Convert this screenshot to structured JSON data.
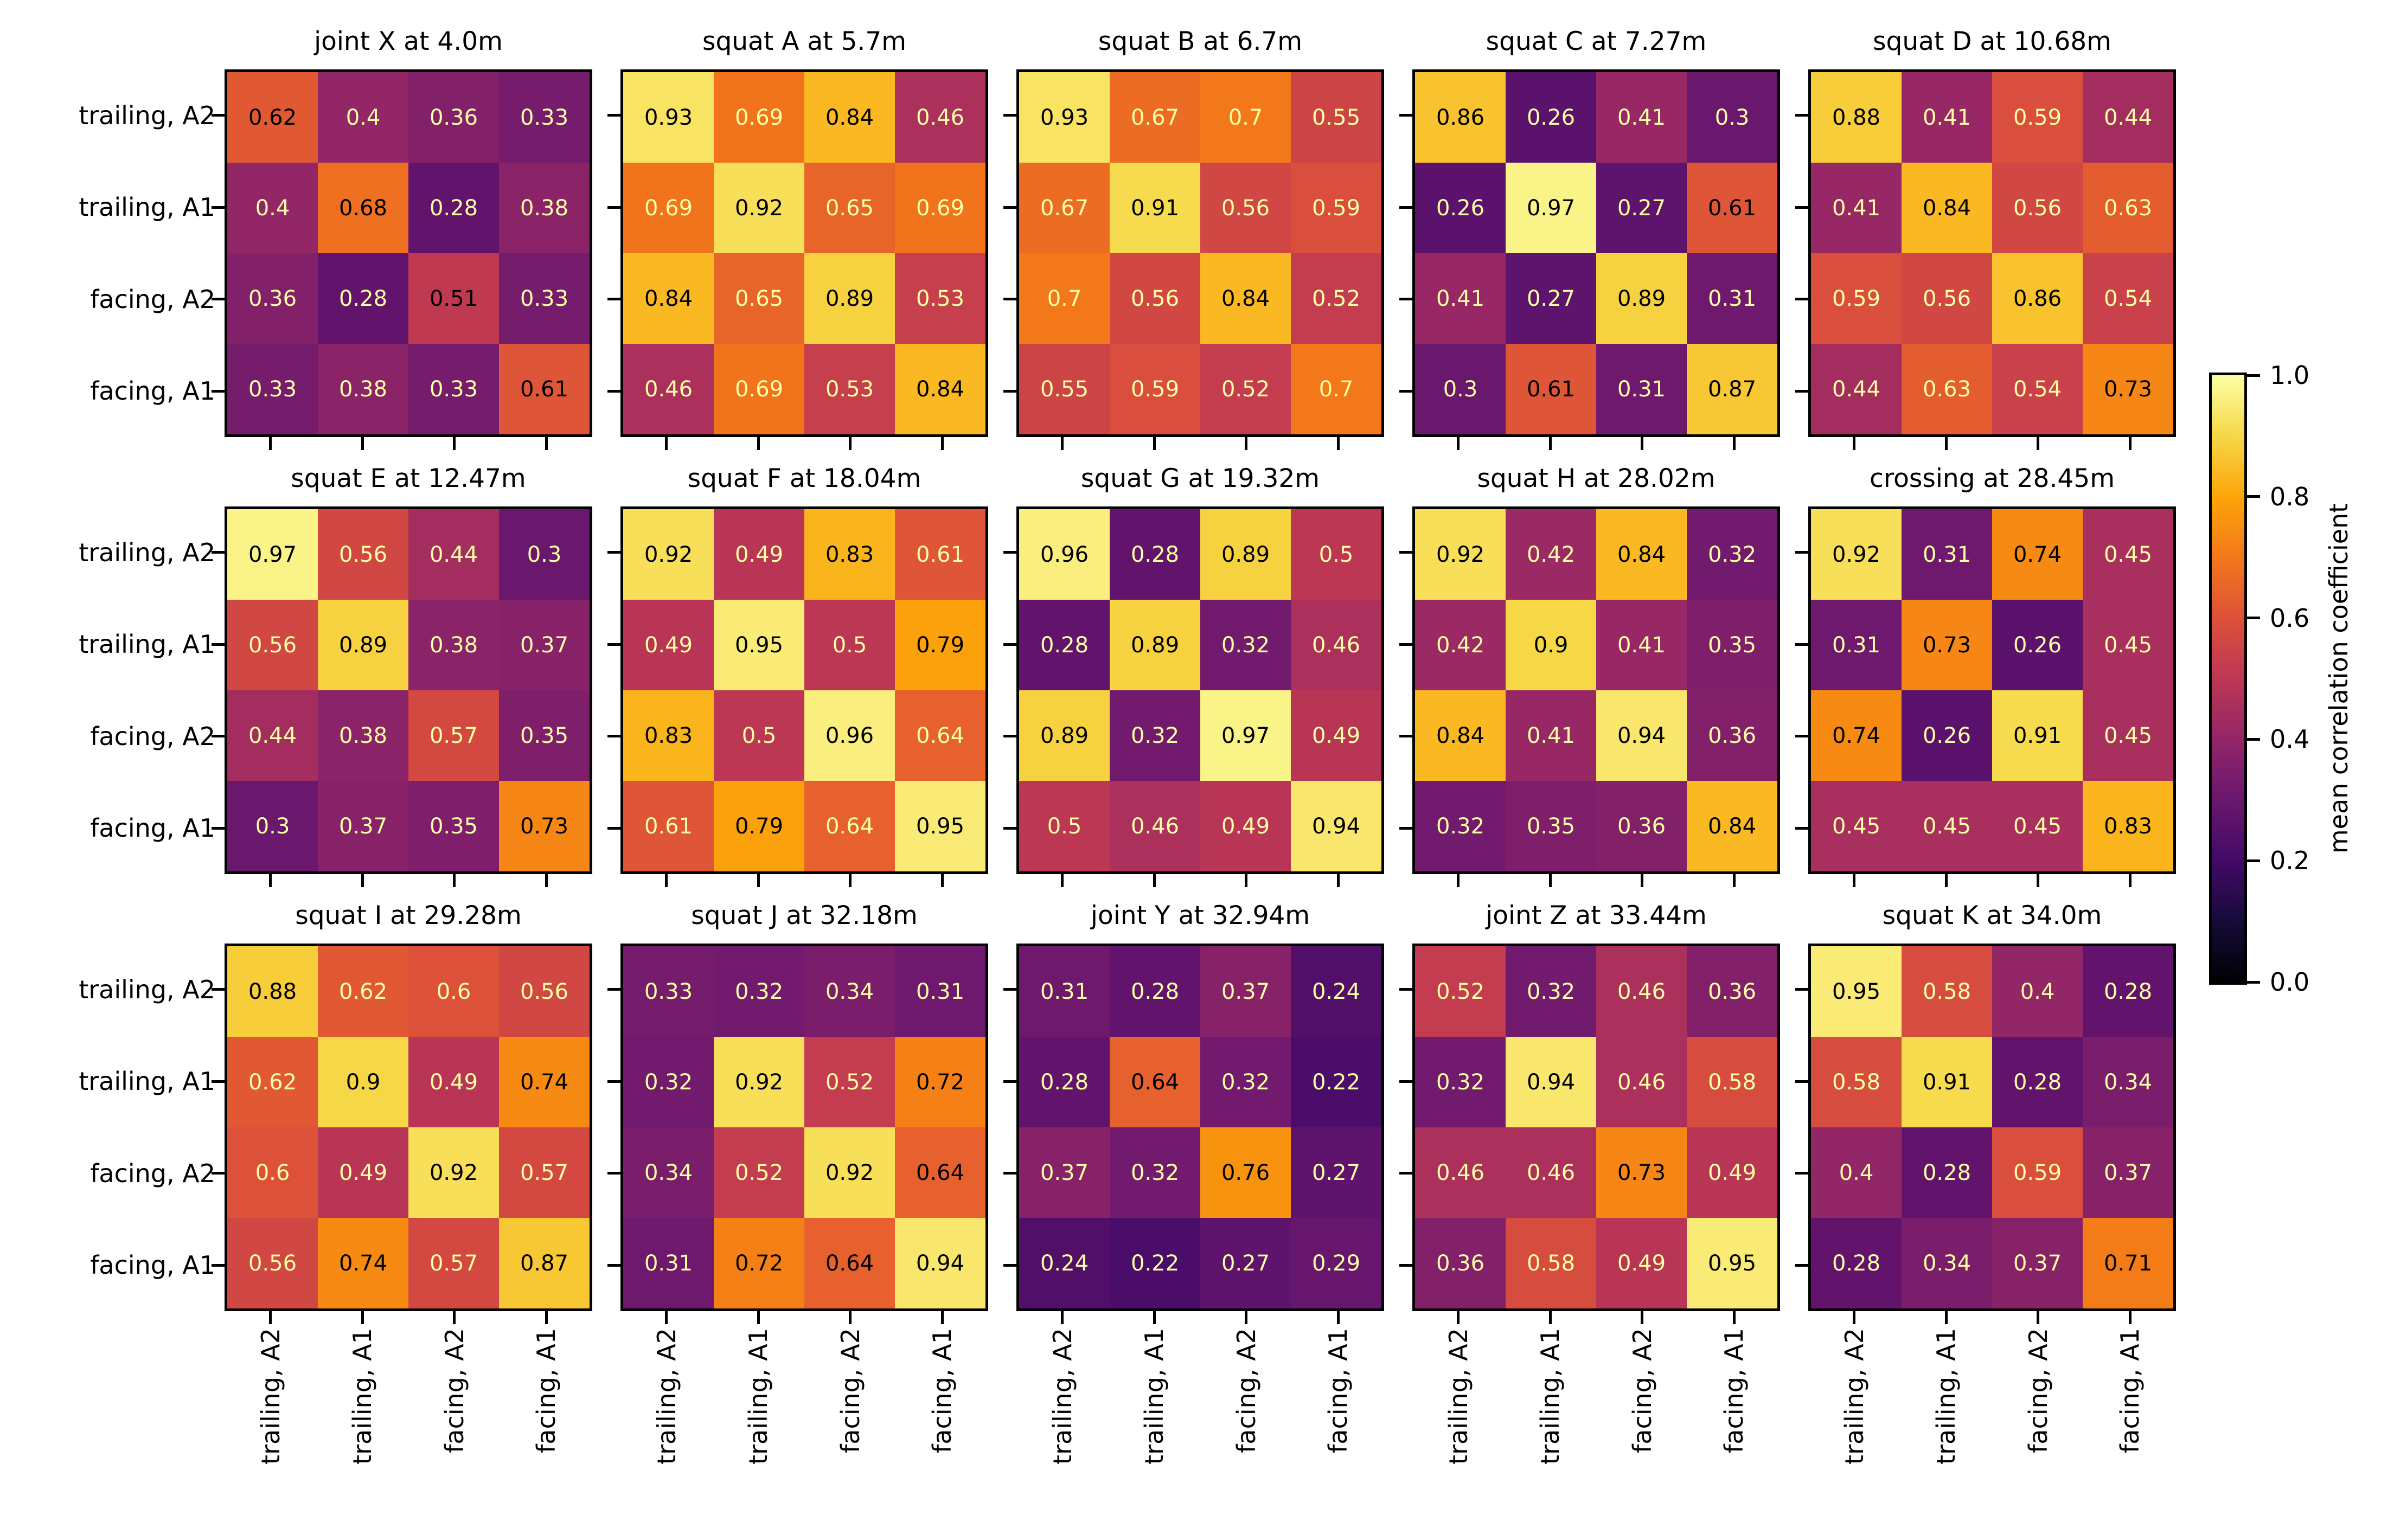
{
  "figure": {
    "colorbar_label": "mean correlation coefficient"
  },
  "chart_data": {
    "type": "heatmap",
    "grid": {
      "rows": 3,
      "cols": 5
    },
    "categories": [
      "trailing, A2",
      "trailing, A1",
      "facing, A2",
      "facing, A1"
    ],
    "row_labels": [
      "trailing, A2",
      "trailing, A1",
      "facing, A2",
      "facing, A1"
    ],
    "colormap": "inferno",
    "vmin": 0.0,
    "vmax": 1.0,
    "colormap_rgb": [
      [
        0,
        0,
        4
      ],
      [
        22,
        11,
        57
      ],
      [
        66,
        10,
        104
      ],
      [
        106,
        23,
        110
      ],
      [
        147,
        38,
        103
      ],
      [
        188,
        55,
        84
      ],
      [
        221,
        81,
        58
      ],
      [
        243,
        120,
        25
      ],
      [
        252,
        165,
        10
      ],
      [
        246,
        215,
        70
      ],
      [
        252,
        255,
        164
      ]
    ],
    "annotation_colors": {
      "light": "#fcffa4",
      "dark": "#000000"
    },
    "colorbar": {
      "label": "mean correlation coefficient",
      "ticks": [
        "0.0",
        "0.2",
        "0.4",
        "0.6",
        "0.8",
        "1.0"
      ],
      "legend_position": "right"
    },
    "panels": [
      {
        "title": "joint X at 4.0m",
        "text_threshold": 0.48,
        "values": [
          [
            0.62,
            0.4,
            0.36,
            0.33
          ],
          [
            0.4,
            0.68,
            0.28,
            0.38
          ],
          [
            0.36,
            0.28,
            0.51,
            0.33
          ],
          [
            0.33,
            0.38,
            0.33,
            0.61
          ]
        ]
      },
      {
        "title": "squat A at 5.7m",
        "text_threshold": 0.695,
        "values": [
          [
            0.93,
            0.69,
            0.84,
            0.46
          ],
          [
            0.69,
            0.92,
            0.65,
            0.69
          ],
          [
            0.84,
            0.65,
            0.89,
            0.53
          ],
          [
            0.46,
            0.69,
            0.53,
            0.84
          ]
        ]
      },
      {
        "title": "squat B at 6.7m",
        "text_threshold": 0.725,
        "values": [
          [
            0.93,
            0.67,
            0.7,
            0.55
          ],
          [
            0.67,
            0.91,
            0.56,
            0.59
          ],
          [
            0.7,
            0.56,
            0.84,
            0.52
          ],
          [
            0.55,
            0.59,
            0.52,
            0.7
          ]
        ]
      },
      {
        "title": "squat C at 7.27m",
        "text_threshold": 0.605,
        "values": [
          [
            0.86,
            0.26,
            0.41,
            0.3
          ],
          [
            0.26,
            0.97,
            0.27,
            0.61
          ],
          [
            0.41,
            0.27,
            0.89,
            0.31
          ],
          [
            0.3,
            0.61,
            0.31,
            0.87
          ]
        ]
      },
      {
        "title": "squat D at 10.68m",
        "text_threshold": 0.645,
        "values": [
          [
            0.88,
            0.41,
            0.59,
            0.44
          ],
          [
            0.41,
            0.84,
            0.56,
            0.63
          ],
          [
            0.59,
            0.56,
            0.86,
            0.54
          ],
          [
            0.44,
            0.63,
            0.54,
            0.73
          ]
        ]
      },
      {
        "title": "squat E at 12.47m",
        "text_threshold": 0.635,
        "values": [
          [
            0.97,
            0.56,
            0.44,
            0.3
          ],
          [
            0.56,
            0.89,
            0.38,
            0.37
          ],
          [
            0.44,
            0.38,
            0.57,
            0.35
          ],
          [
            0.3,
            0.37,
            0.35,
            0.73
          ]
        ]
      },
      {
        "title": "squat F at 18.04m",
        "text_threshold": 0.725,
        "values": [
          [
            0.92,
            0.49,
            0.83,
            0.61
          ],
          [
            0.49,
            0.95,
            0.5,
            0.79
          ],
          [
            0.83,
            0.5,
            0.96,
            0.64
          ],
          [
            0.61,
            0.79,
            0.64,
            0.95
          ]
        ]
      },
      {
        "title": "squat G at 19.32m",
        "text_threshold": 0.625,
        "values": [
          [
            0.96,
            0.28,
            0.89,
            0.5
          ],
          [
            0.28,
            0.89,
            0.32,
            0.46
          ],
          [
            0.89,
            0.32,
            0.97,
            0.49
          ],
          [
            0.5,
            0.46,
            0.49,
            0.94
          ]
        ]
      },
      {
        "title": "squat H at 28.02m",
        "text_threshold": 0.63,
        "values": [
          [
            0.92,
            0.42,
            0.84,
            0.32
          ],
          [
            0.42,
            0.9,
            0.41,
            0.35
          ],
          [
            0.84,
            0.41,
            0.94,
            0.36
          ],
          [
            0.32,
            0.35,
            0.36,
            0.84
          ]
        ]
      },
      {
        "title": "crossing at 28.45m",
        "text_threshold": 0.59,
        "values": [
          [
            0.92,
            0.31,
            0.74,
            0.45
          ],
          [
            0.31,
            0.73,
            0.26,
            0.45
          ],
          [
            0.74,
            0.26,
            0.91,
            0.45
          ],
          [
            0.45,
            0.45,
            0.45,
            0.83
          ]
        ]
      },
      {
        "title": "squat I at 29.28m",
        "text_threshold": 0.705,
        "values": [
          [
            0.88,
            0.62,
            0.6,
            0.56
          ],
          [
            0.62,
            0.9,
            0.49,
            0.74
          ],
          [
            0.6,
            0.49,
            0.92,
            0.57
          ],
          [
            0.56,
            0.74,
            0.57,
            0.87
          ]
        ]
      },
      {
        "title": "squat J at 32.18m",
        "text_threshold": 0.625,
        "values": [
          [
            0.33,
            0.32,
            0.34,
            0.31
          ],
          [
            0.32,
            0.92,
            0.52,
            0.72
          ],
          [
            0.34,
            0.52,
            0.92,
            0.64
          ],
          [
            0.31,
            0.72,
            0.64,
            0.94
          ]
        ]
      },
      {
        "title": "joint Y at 32.94m",
        "text_threshold": 0.49,
        "values": [
          [
            0.31,
            0.28,
            0.37,
            0.24
          ],
          [
            0.28,
            0.64,
            0.32,
            0.22
          ],
          [
            0.37,
            0.32,
            0.76,
            0.27
          ],
          [
            0.24,
            0.22,
            0.27,
            0.29
          ]
        ]
      },
      {
        "title": "joint Z at 33.44m",
        "text_threshold": 0.635,
        "values": [
          [
            0.52,
            0.32,
            0.46,
            0.36
          ],
          [
            0.32,
            0.94,
            0.46,
            0.58
          ],
          [
            0.46,
            0.46,
            0.73,
            0.49
          ],
          [
            0.36,
            0.58,
            0.49,
            0.95
          ]
        ]
      },
      {
        "title": "squat K at 34.0m",
        "text_threshold": 0.615,
        "values": [
          [
            0.95,
            0.58,
            0.4,
            0.28
          ],
          [
            0.58,
            0.91,
            0.28,
            0.34
          ],
          [
            0.4,
            0.28,
            0.59,
            0.37
          ],
          [
            0.28,
            0.34,
            0.37,
            0.71
          ]
        ]
      }
    ]
  }
}
